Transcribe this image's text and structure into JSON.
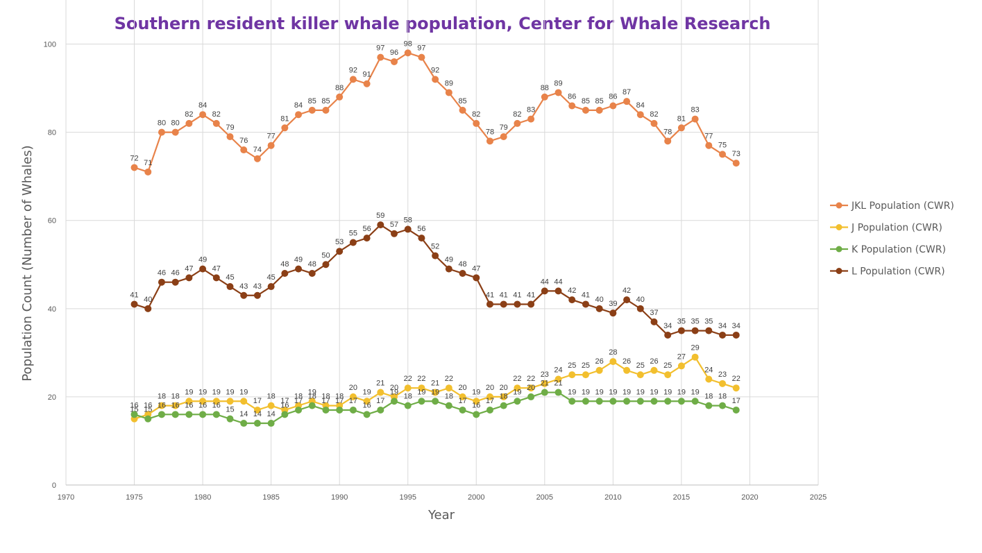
{
  "chart_data": {
    "type": "line",
    "title": "Southern resident killer whale population, Center for Whale Research",
    "xlabel": "Year",
    "ylabel": "Population Count (Number of Whales)",
    "xlim": [
      1970,
      2025
    ],
    "ylim": [
      0,
      110
    ],
    "x_ticks": [
      1970,
      1975,
      1980,
      1985,
      1990,
      1995,
      2000,
      2005,
      2010,
      2015,
      2020,
      2025
    ],
    "y_ticks": [
      0,
      20,
      40,
      60,
      80,
      100
    ],
    "grid": true,
    "legend_position": "right",
    "x": [
      1975,
      1976,
      1977,
      1978,
      1979,
      1980,
      1981,
      1982,
      1983,
      1984,
      1985,
      1986,
      1987,
      1988,
      1989,
      1990,
      1991,
      1992,
      1993,
      1994,
      1995,
      1996,
      1997,
      1998,
      1999,
      2000,
      2001,
      2002,
      2003,
      2004,
      2005,
      2006,
      2007,
      2008,
      2009,
      2010,
      2011,
      2012,
      2013,
      2014,
      2015,
      2016,
      2017,
      2018,
      2019
    ],
    "series": [
      {
        "name": "JKL Population (CWR)",
        "color": "#e8834a",
        "values": [
          72,
          71,
          80,
          80,
          82,
          84,
          82,
          79,
          76,
          74,
          77,
          81,
          84,
          85,
          85,
          88,
          92,
          91,
          97,
          96,
          98,
          97,
          92,
          89,
          85,
          82,
          78,
          79,
          82,
          83,
          88,
          89,
          86,
          85,
          85,
          86,
          87,
          84,
          82,
          78,
          81,
          83,
          77,
          75,
          73
        ]
      },
      {
        "name": "J Population (CWR)",
        "color": "#f2bf2e",
        "values": [
          15,
          16,
          18,
          18,
          19,
          19,
          19,
          19,
          19,
          17,
          18,
          17,
          18,
          19,
          18,
          18,
          20,
          19,
          21,
          20,
          22,
          22,
          21,
          22,
          20,
          19,
          20,
          20,
          22,
          22,
          23,
          24,
          25,
          25,
          26,
          28,
          26,
          25,
          26,
          25,
          27,
          29,
          24,
          23,
          22
        ]
      },
      {
        "name": "K Population (CWR)",
        "color": "#6fad47",
        "values": [
          16,
          15,
          16,
          16,
          16,
          16,
          16,
          15,
          14,
          14,
          14,
          16,
          17,
          18,
          17,
          17,
          17,
          16,
          17,
          19,
          18,
          19,
          19,
          18,
          17,
          16,
          17,
          18,
          19,
          20,
          21,
          21,
          19,
          19,
          19,
          19,
          19,
          19,
          19,
          19,
          19,
          19,
          18,
          18,
          17
        ]
      },
      {
        "name": "L Population (CWR)",
        "color": "#8b3f16",
        "values": [
          41,
          40,
          46,
          46,
          47,
          49,
          47,
          45,
          43,
          43,
          45,
          48,
          49,
          48,
          50,
          53,
          55,
          56,
          59,
          57,
          58,
          56,
          52,
          49,
          48,
          47,
          41,
          41,
          41,
          41,
          44,
          44,
          42,
          41,
          40,
          39,
          42,
          40,
          37,
          34,
          35,
          35,
          35,
          34,
          34
        ]
      }
    ]
  }
}
